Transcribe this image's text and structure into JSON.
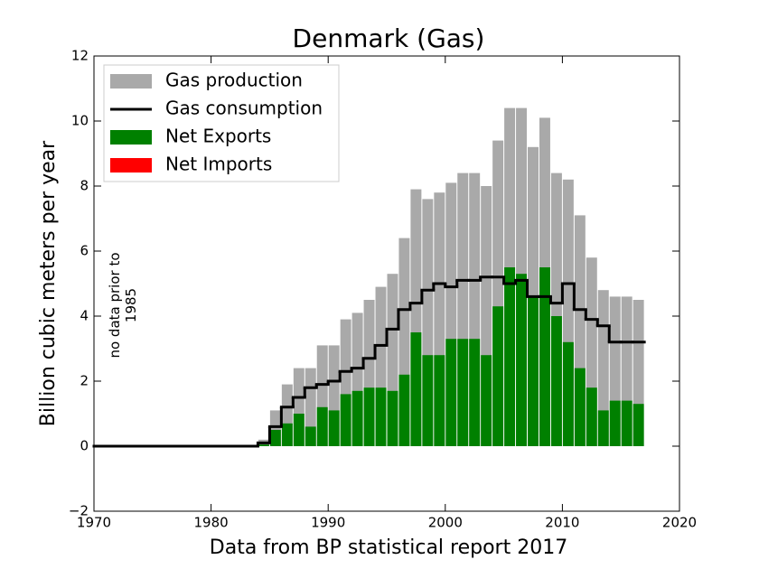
{
  "chart_data": {
    "type": "bar",
    "title": "Denmark (Gas)",
    "xlabel": "Data from BP statistical report 2017",
    "ylabel": "Billion cubic meters per year",
    "annotation": "no data prior to 1985",
    "x": [
      1970,
      1971,
      1972,
      1973,
      1974,
      1975,
      1976,
      1977,
      1978,
      1979,
      1980,
      1981,
      1982,
      1983,
      1984,
      1985,
      1986,
      1987,
      1988,
      1989,
      1990,
      1991,
      1992,
      1993,
      1994,
      1995,
      1996,
      1997,
      1998,
      1999,
      2000,
      2001,
      2002,
      2003,
      2004,
      2005,
      2006,
      2007,
      2008,
      2009,
      2010,
      2011,
      2012,
      2013,
      2014,
      2015,
      2016
    ],
    "series": [
      {
        "name": "Gas production",
        "color": "#a9a9a9",
        "values": [
          0,
          0,
          0,
          0,
          0,
          0,
          0,
          0,
          0,
          0,
          0,
          0,
          0,
          0,
          0.2,
          1.1,
          1.9,
          2.4,
          2.4,
          3.1,
          3.1,
          3.9,
          4.1,
          4.5,
          4.9,
          5.3,
          6.4,
          7.9,
          7.6,
          7.8,
          8.1,
          8.4,
          8.4,
          8.0,
          9.4,
          10.4,
          10.4,
          9.2,
          10.1,
          8.4,
          8.2,
          7.1,
          5.8,
          4.8,
          4.6,
          4.6,
          4.5
        ]
      },
      {
        "name": "Gas consumption",
        "color": "#000000",
        "values": [
          0,
          0,
          0,
          0,
          0,
          0,
          0,
          0,
          0,
          0,
          0,
          0,
          0,
          0,
          0.1,
          0.6,
          1.2,
          1.5,
          1.8,
          1.9,
          2.0,
          2.3,
          2.4,
          2.7,
          3.1,
          3.6,
          4.2,
          4.4,
          4.8,
          5.0,
          4.9,
          5.1,
          5.1,
          5.2,
          5.2,
          5.0,
          5.1,
          4.6,
          4.6,
          4.4,
          5.0,
          4.2,
          3.9,
          3.7,
          3.2,
          3.2,
          3.2
        ]
      },
      {
        "name": "Net Exports",
        "color": "#008000",
        "values": [
          0,
          0,
          0,
          0,
          0,
          0,
          0,
          0,
          0,
          0,
          0,
          0,
          0,
          0,
          0.05,
          0.5,
          0.7,
          1.0,
          0.6,
          1.2,
          1.1,
          1.6,
          1.7,
          1.8,
          1.8,
          1.7,
          2.2,
          3.5,
          2.8,
          2.8,
          3.3,
          3.3,
          3.3,
          2.8,
          4.3,
          5.5,
          5.3,
          4.6,
          5.5,
          4.0,
          3.2,
          2.4,
          1.8,
          1.1,
          1.4,
          1.4,
          1.3
        ]
      },
      {
        "name": "Net Imports",
        "color": "#ff0000",
        "values": [
          0,
          0,
          0,
          0,
          0,
          0,
          0,
          0,
          0,
          0,
          0,
          0,
          0,
          0,
          0,
          0,
          0,
          0,
          0,
          0,
          0,
          0,
          0,
          0,
          0,
          0,
          0,
          0,
          0,
          0,
          0,
          0,
          0,
          0,
          0,
          0,
          0,
          0,
          0,
          0,
          0,
          0,
          0,
          0,
          0,
          0,
          0
        ]
      }
    ],
    "xlim": [
      1970,
      2020
    ],
    "xticks": [
      1970,
      1980,
      1990,
      2000,
      2010,
      2020
    ],
    "ylim": [
      -2,
      12
    ],
    "yticks": [
      {
        "value": -2,
        "label": "−2"
      },
      0,
      2,
      4,
      6,
      8,
      10,
      12
    ],
    "legend": "upper left"
  }
}
